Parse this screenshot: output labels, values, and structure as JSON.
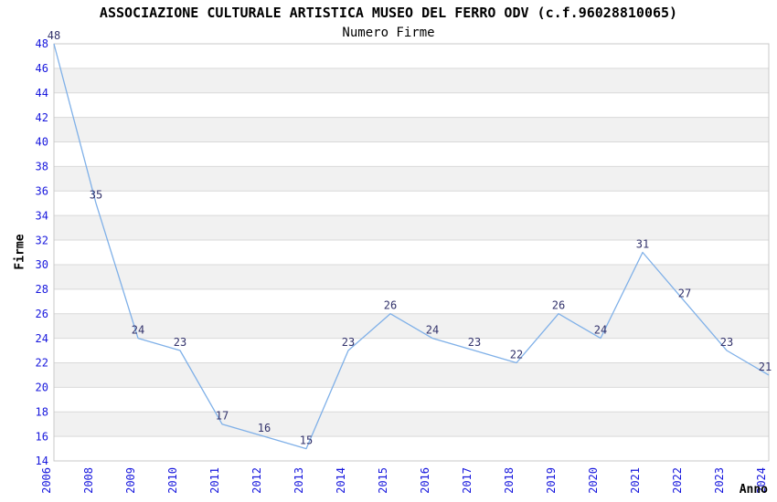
{
  "header": {
    "title": "ASSOCIAZIONE CULTURALE ARTISTICA MUSEO DEL FERRO ODV (c.f.96028810065)",
    "subtitle": "Numero Firme"
  },
  "axes": {
    "x_label": "Anno",
    "y_label": "Firme",
    "y_ticks": [
      14,
      16,
      18,
      20,
      22,
      24,
      26,
      28,
      30,
      32,
      34,
      36,
      38,
      40,
      42,
      44,
      46,
      48
    ]
  },
  "chart_data": {
    "type": "line",
    "title": "Numero Firme",
    "categories": [
      "2006",
      "2008",
      "2009",
      "2010",
      "2011",
      "2012",
      "2013",
      "2014",
      "2015",
      "2016",
      "2017",
      "2018",
      "2019",
      "2020",
      "2021",
      "2022",
      "2023",
      "2024"
    ],
    "values": [
      48,
      35,
      24,
      23,
      17,
      16,
      15,
      23,
      26,
      24,
      23,
      22,
      26,
      24,
      31,
      27,
      23,
      21
    ],
    "xlabel": "Anno",
    "ylabel": "Firme",
    "ylim": [
      14,
      48
    ],
    "y_tick_step": 2,
    "grid": "horizontal gridlines every 2 units with alternating white/gray bands",
    "legend": "none",
    "point_labels_visible": true
  },
  "colors": {
    "tick_label_blue": "#1717dd",
    "data_label_navy": "#32326b",
    "line_blue": "#7fb0e8",
    "band_gray": "#f1f1f1",
    "grid_gray": "#d9d9d9",
    "border_gray": "#c9c9c9",
    "text_black": "#000000"
  }
}
